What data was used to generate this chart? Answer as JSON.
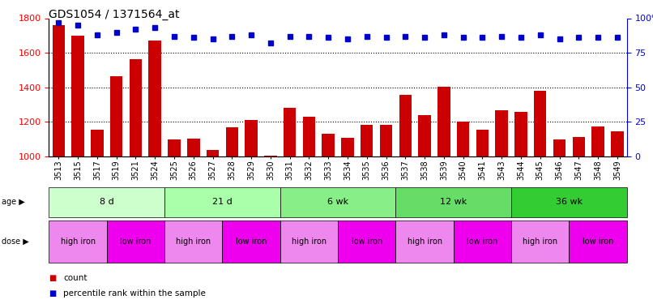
{
  "title": "GDS1054 / 1371564_at",
  "samples": [
    "3513",
    "3515",
    "3517",
    "3519",
    "3521",
    "3524",
    "3525",
    "3526",
    "3527",
    "3528",
    "3529",
    "3530",
    "3531",
    "3532",
    "3533",
    "3534",
    "3535",
    "3536",
    "3537",
    "3538",
    "3539",
    "3540",
    "3541",
    "3543",
    "3544",
    "3545",
    "3546",
    "3547",
    "3548",
    "3549"
  ],
  "counts": [
    1760,
    1700,
    1155,
    1465,
    1565,
    1670,
    1100,
    1105,
    1040,
    1170,
    1210,
    1005,
    1280,
    1230,
    1130,
    1110,
    1185,
    1185,
    1355,
    1240,
    1405,
    1200,
    1155,
    1270,
    1260,
    1380,
    1100,
    1115,
    1175,
    1145
  ],
  "percentile": [
    97,
    95,
    88,
    90,
    92,
    93,
    87,
    86,
    85,
    87,
    88,
    82,
    87,
    87,
    86,
    85,
    87,
    86,
    87,
    86,
    88,
    86,
    86,
    87,
    86,
    88,
    85,
    86,
    86,
    86
  ],
  "bar_color": "#cc0000",
  "dot_color": "#0000cc",
  "ylim_left": [
    1000,
    1800
  ],
  "ylim_right": [
    0,
    100
  ],
  "yticks_left": [
    1000,
    1200,
    1400,
    1600,
    1800
  ],
  "yticks_right": [
    0,
    25,
    50,
    75,
    100
  ],
  "yticklabels_right": [
    "0",
    "25",
    "50",
    "75",
    "100%"
  ],
  "age_groups": [
    {
      "label": "8 d",
      "start": 0,
      "end": 6,
      "color": "#ccffcc"
    },
    {
      "label": "21 d",
      "start": 6,
      "end": 12,
      "color": "#aaffaa"
    },
    {
      "label": "6 wk",
      "start": 12,
      "end": 18,
      "color": "#88ee88"
    },
    {
      "label": "12 wk",
      "start": 18,
      "end": 24,
      "color": "#66dd66"
    },
    {
      "label": "36 wk",
      "start": 24,
      "end": 30,
      "color": "#33cc33"
    }
  ],
  "dose_groups": [
    {
      "label": "high iron",
      "start": 0,
      "end": 3,
      "color": "#ee88ee"
    },
    {
      "label": "low iron",
      "start": 3,
      "end": 6,
      "color": "#ee00ee"
    },
    {
      "label": "high iron",
      "start": 6,
      "end": 9,
      "color": "#ee88ee"
    },
    {
      "label": "low iron",
      "start": 9,
      "end": 12,
      "color": "#ee00ee"
    },
    {
      "label": "high iron",
      "start": 12,
      "end": 15,
      "color": "#ee88ee"
    },
    {
      "label": "low iron",
      "start": 15,
      "end": 18,
      "color": "#ee00ee"
    },
    {
      "label": "high iron",
      "start": 18,
      "end": 21,
      "color": "#ee88ee"
    },
    {
      "label": "low iron",
      "start": 21,
      "end": 24,
      "color": "#ee00ee"
    },
    {
      "label": "high iron",
      "start": 24,
      "end": 27,
      "color": "#ee88ee"
    },
    {
      "label": "low iron",
      "start": 27,
      "end": 30,
      "color": "#ee00ee"
    }
  ],
  "background_color": "#ffffff"
}
